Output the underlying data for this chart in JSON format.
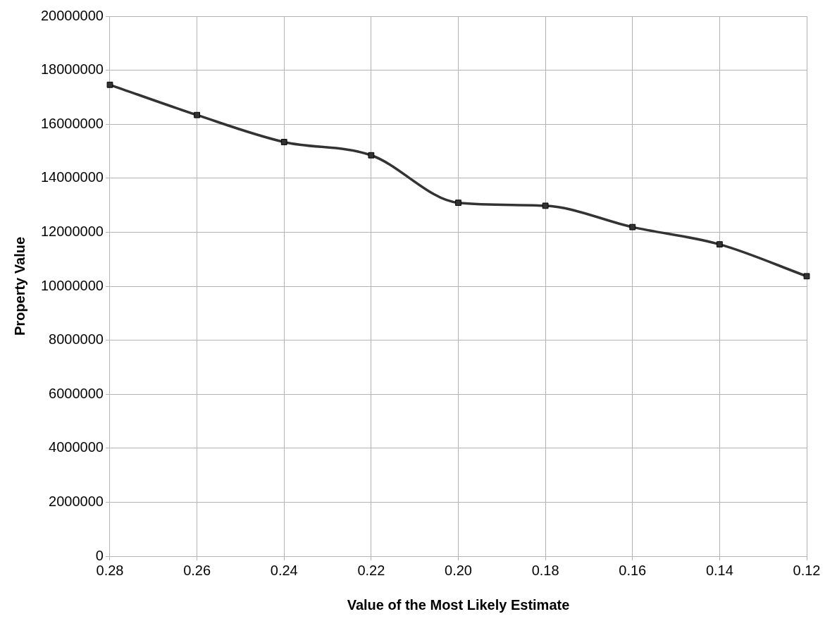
{
  "chart_data": {
    "type": "line",
    "xlabel": "Value of the Most Likely Estimate",
    "ylabel": "Property Value",
    "categories": [
      "0.28",
      "0.26",
      "0.24",
      "0.22",
      "0.20",
      "0.18",
      "0.16",
      "0.14",
      "0.12"
    ],
    "series": [
      {
        "color": "#333333",
        "values": [
          17460000,
          16340000,
          15340000,
          14850000,
          13090000,
          12980000,
          12190000,
          11550000,
          10370000
        ]
      }
    ],
    "ylim": [
      0,
      20000000
    ],
    "yticks": [
      0,
      2000000,
      4000000,
      6000000,
      8000000,
      10000000,
      12000000,
      14000000,
      16000000,
      18000000,
      20000000
    ],
    "grid": true,
    "legend": false,
    "marker": "square",
    "line_style": "solid"
  }
}
